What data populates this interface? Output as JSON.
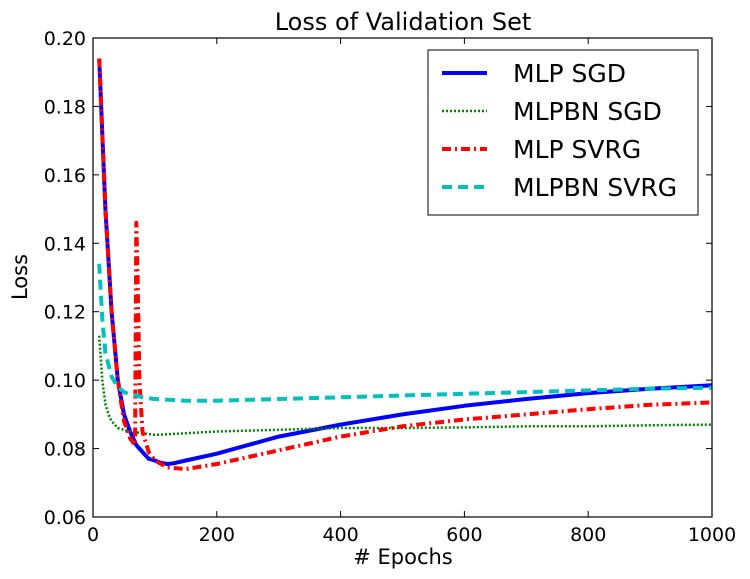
{
  "chart_data": {
    "type": "line",
    "title": "Loss of Validation Set",
    "xlabel": "# Epochs",
    "ylabel": "Loss",
    "xlim": [
      0,
      1000
    ],
    "ylim": [
      0.06,
      0.2
    ],
    "xticks": [
      0,
      200,
      400,
      600,
      800,
      1000
    ],
    "xtick_labels": [
      "0",
      "200",
      "400",
      "600",
      "800",
      "1000"
    ],
    "yticks": [
      0.06,
      0.08,
      0.1,
      0.12,
      0.14,
      0.16,
      0.18,
      0.2
    ],
    "ytick_labels": [
      "0.06",
      "0.08",
      "0.10",
      "0.12",
      "0.14",
      "0.16",
      "0.18",
      "0.20"
    ],
    "grid": false,
    "legend_position": "top-right",
    "series": [
      {
        "name": "MLP SGD",
        "color": "#0000ff",
        "style": "solid",
        "x": [
          10,
          20,
          30,
          40,
          50,
          60,
          70,
          80,
          90,
          100,
          110,
          120,
          130,
          150,
          200,
          250,
          300,
          400,
          500,
          600,
          700,
          800,
          900,
          1000
        ],
        "y": [
          0.194,
          0.15,
          0.12,
          0.1,
          0.09,
          0.085,
          0.081,
          0.079,
          0.077,
          0.0765,
          0.0758,
          0.0755,
          0.0757,
          0.0765,
          0.0785,
          0.081,
          0.0835,
          0.087,
          0.09,
          0.0925,
          0.0945,
          0.0962,
          0.0975,
          0.0985
        ]
      },
      {
        "name": "MLPBN SGD",
        "color": "#007f00",
        "style": "dotted",
        "x": [
          10,
          15,
          20,
          25,
          30,
          40,
          50,
          60,
          80,
          100,
          150,
          200,
          300,
          400,
          500,
          600,
          700,
          800,
          900,
          1000
        ],
        "y": [
          0.113,
          0.1,
          0.093,
          0.09,
          0.088,
          0.086,
          0.0855,
          0.085,
          0.0845,
          0.084,
          0.0845,
          0.085,
          0.0855,
          0.086,
          0.086,
          0.0862,
          0.0865,
          0.0865,
          0.0868,
          0.087
        ]
      },
      {
        "name": "MLP SVRG",
        "color": "#ff0000",
        "style": "dashdot",
        "x": [
          10,
          20,
          30,
          40,
          50,
          60,
          68,
          70,
          72,
          75,
          80,
          90,
          100,
          120,
          150,
          200,
          300,
          400,
          500,
          600,
          700,
          800,
          900,
          1000
        ],
        "y": [
          0.194,
          0.15,
          0.12,
          0.1,
          0.088,
          0.083,
          0.081,
          0.146,
          0.13,
          0.1,
          0.085,
          0.079,
          0.0765,
          0.0745,
          0.074,
          0.0755,
          0.0795,
          0.0835,
          0.0865,
          0.0885,
          0.09,
          0.0915,
          0.0928,
          0.0935
        ]
      },
      {
        "name": "MLPBN SVRG",
        "color": "#00bfbf",
        "style": "dashed",
        "x": [
          10,
          15,
          20,
          30,
          40,
          50,
          60,
          70,
          80,
          100,
          150,
          200,
          300,
          400,
          500,
          600,
          700,
          800,
          900,
          1000
        ],
        "y": [
          0.134,
          0.118,
          0.108,
          0.101,
          0.098,
          0.0965,
          0.0958,
          0.0955,
          0.095,
          0.0945,
          0.094,
          0.094,
          0.0945,
          0.095,
          0.0955,
          0.096,
          0.0965,
          0.097,
          0.0975,
          0.0978
        ]
      }
    ]
  }
}
